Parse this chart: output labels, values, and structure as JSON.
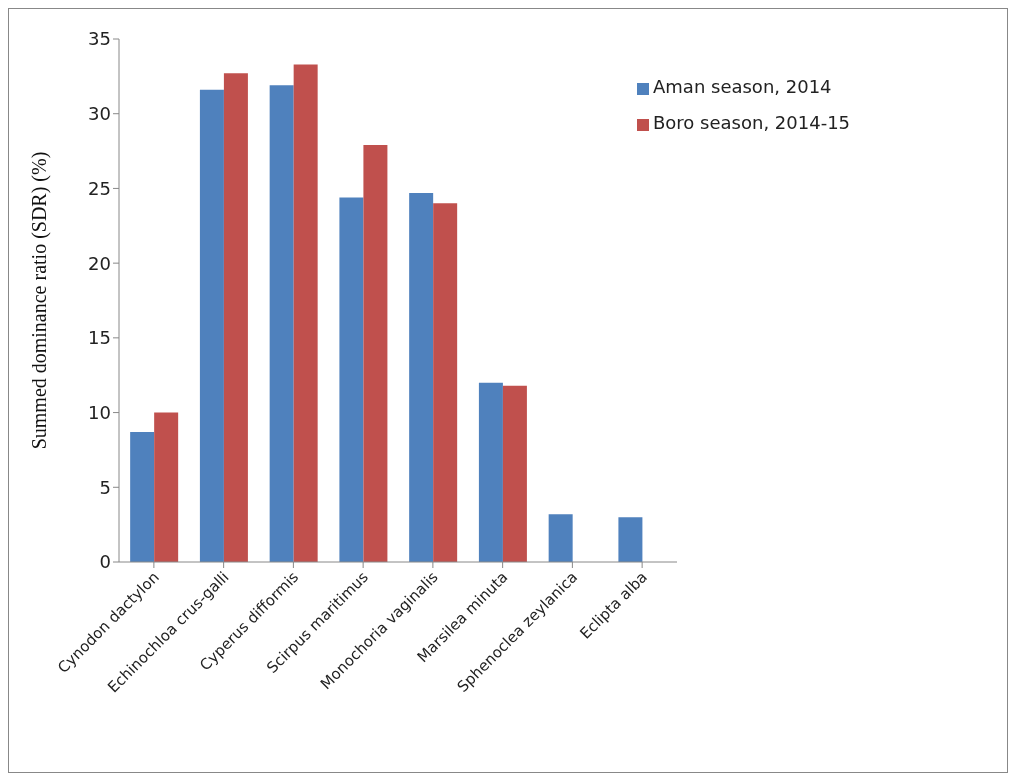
{
  "chart_data": {
    "type": "bar",
    "ylabel": "Summed dominance ratio (SDR) (%)",
    "categories": [
      "Cynodon dactylon",
      "Echinochloa crus-galli",
      "Cyperus difformis",
      "Scirpus maritimus",
      "Monochoria vaginalis",
      "Marsilea minuta",
      "Sphenoclea zeylanica",
      "Eclipta alba"
    ],
    "series": [
      {
        "name": "Aman season, 2014",
        "color": "#4f81bd",
        "values": [
          8.7,
          31.6,
          31.9,
          24.4,
          24.7,
          12.0,
          3.2,
          3.0
        ]
      },
      {
        "name": "Boro season, 2014-15",
        "color": "#c0504d",
        "values": [
          10.0,
          32.7,
          33.3,
          27.9,
          24.0,
          11.8,
          null,
          null
        ]
      }
    ],
    "ylim": [
      0,
      35
    ],
    "yticks": [
      0,
      5,
      10,
      15,
      20,
      25,
      30,
      35
    ],
    "grid": false,
    "legend": "top right"
  }
}
